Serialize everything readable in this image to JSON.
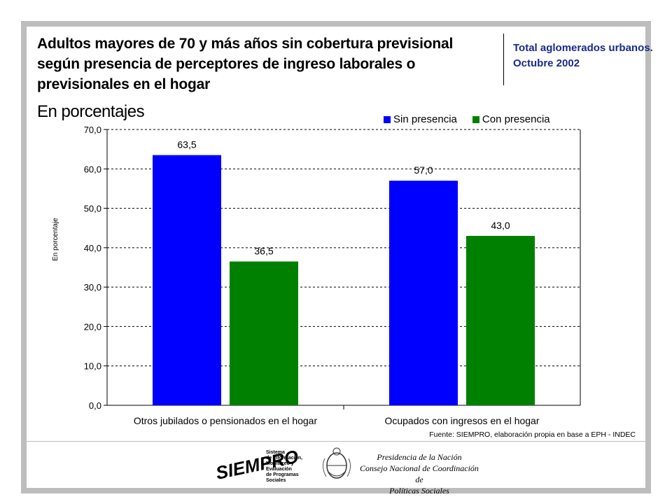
{
  "header": {
    "title": "Adultos mayores de 70 y más años sin cobertura previsional según presencia de perceptores de ingreso laborales o previsionales en el hogar",
    "subtitle": "En porcentajes",
    "scope": "Total aglomerados urbanos. Octubre 2002"
  },
  "footer": {
    "source": "Fuente: SIEMPRO, elaboración propia en base a EPH - INDEC",
    "siempro_logo": "SIEMPRO",
    "siempro_lines": [
      "Sistema",
      "de Información,",
      "Monitoreo y",
      "Evaluación",
      "de Programas",
      "Sociales"
    ],
    "presidencia_lines": [
      "Presidencia de la Nación",
      "Consejo Nacional de Coordinación de",
      "Políticas Sociales"
    ]
  },
  "chart_data": {
    "type": "bar",
    "categories": [
      "Otros jubilados o pensionados en el hogar",
      "Ocupados con ingresos en el hogar"
    ],
    "series": [
      {
        "name": "Sin presencia",
        "color": "#0000ff",
        "values": [
          63.5,
          57.0
        ],
        "labels": [
          "63,5",
          "57,0"
        ]
      },
      {
        "name": "Con presencia",
        "color": "#008000",
        "values": [
          36.5,
          43.0
        ],
        "labels": [
          "36,5",
          "43,0"
        ]
      }
    ],
    "ylabel": "En porcentaje",
    "ylim": [
      0,
      70
    ],
    "yticks": [
      "0,0",
      "10,0",
      "20,0",
      "30,0",
      "40,0",
      "50,0",
      "60,0",
      "70,0"
    ],
    "grid": true,
    "legend": "top-right"
  }
}
